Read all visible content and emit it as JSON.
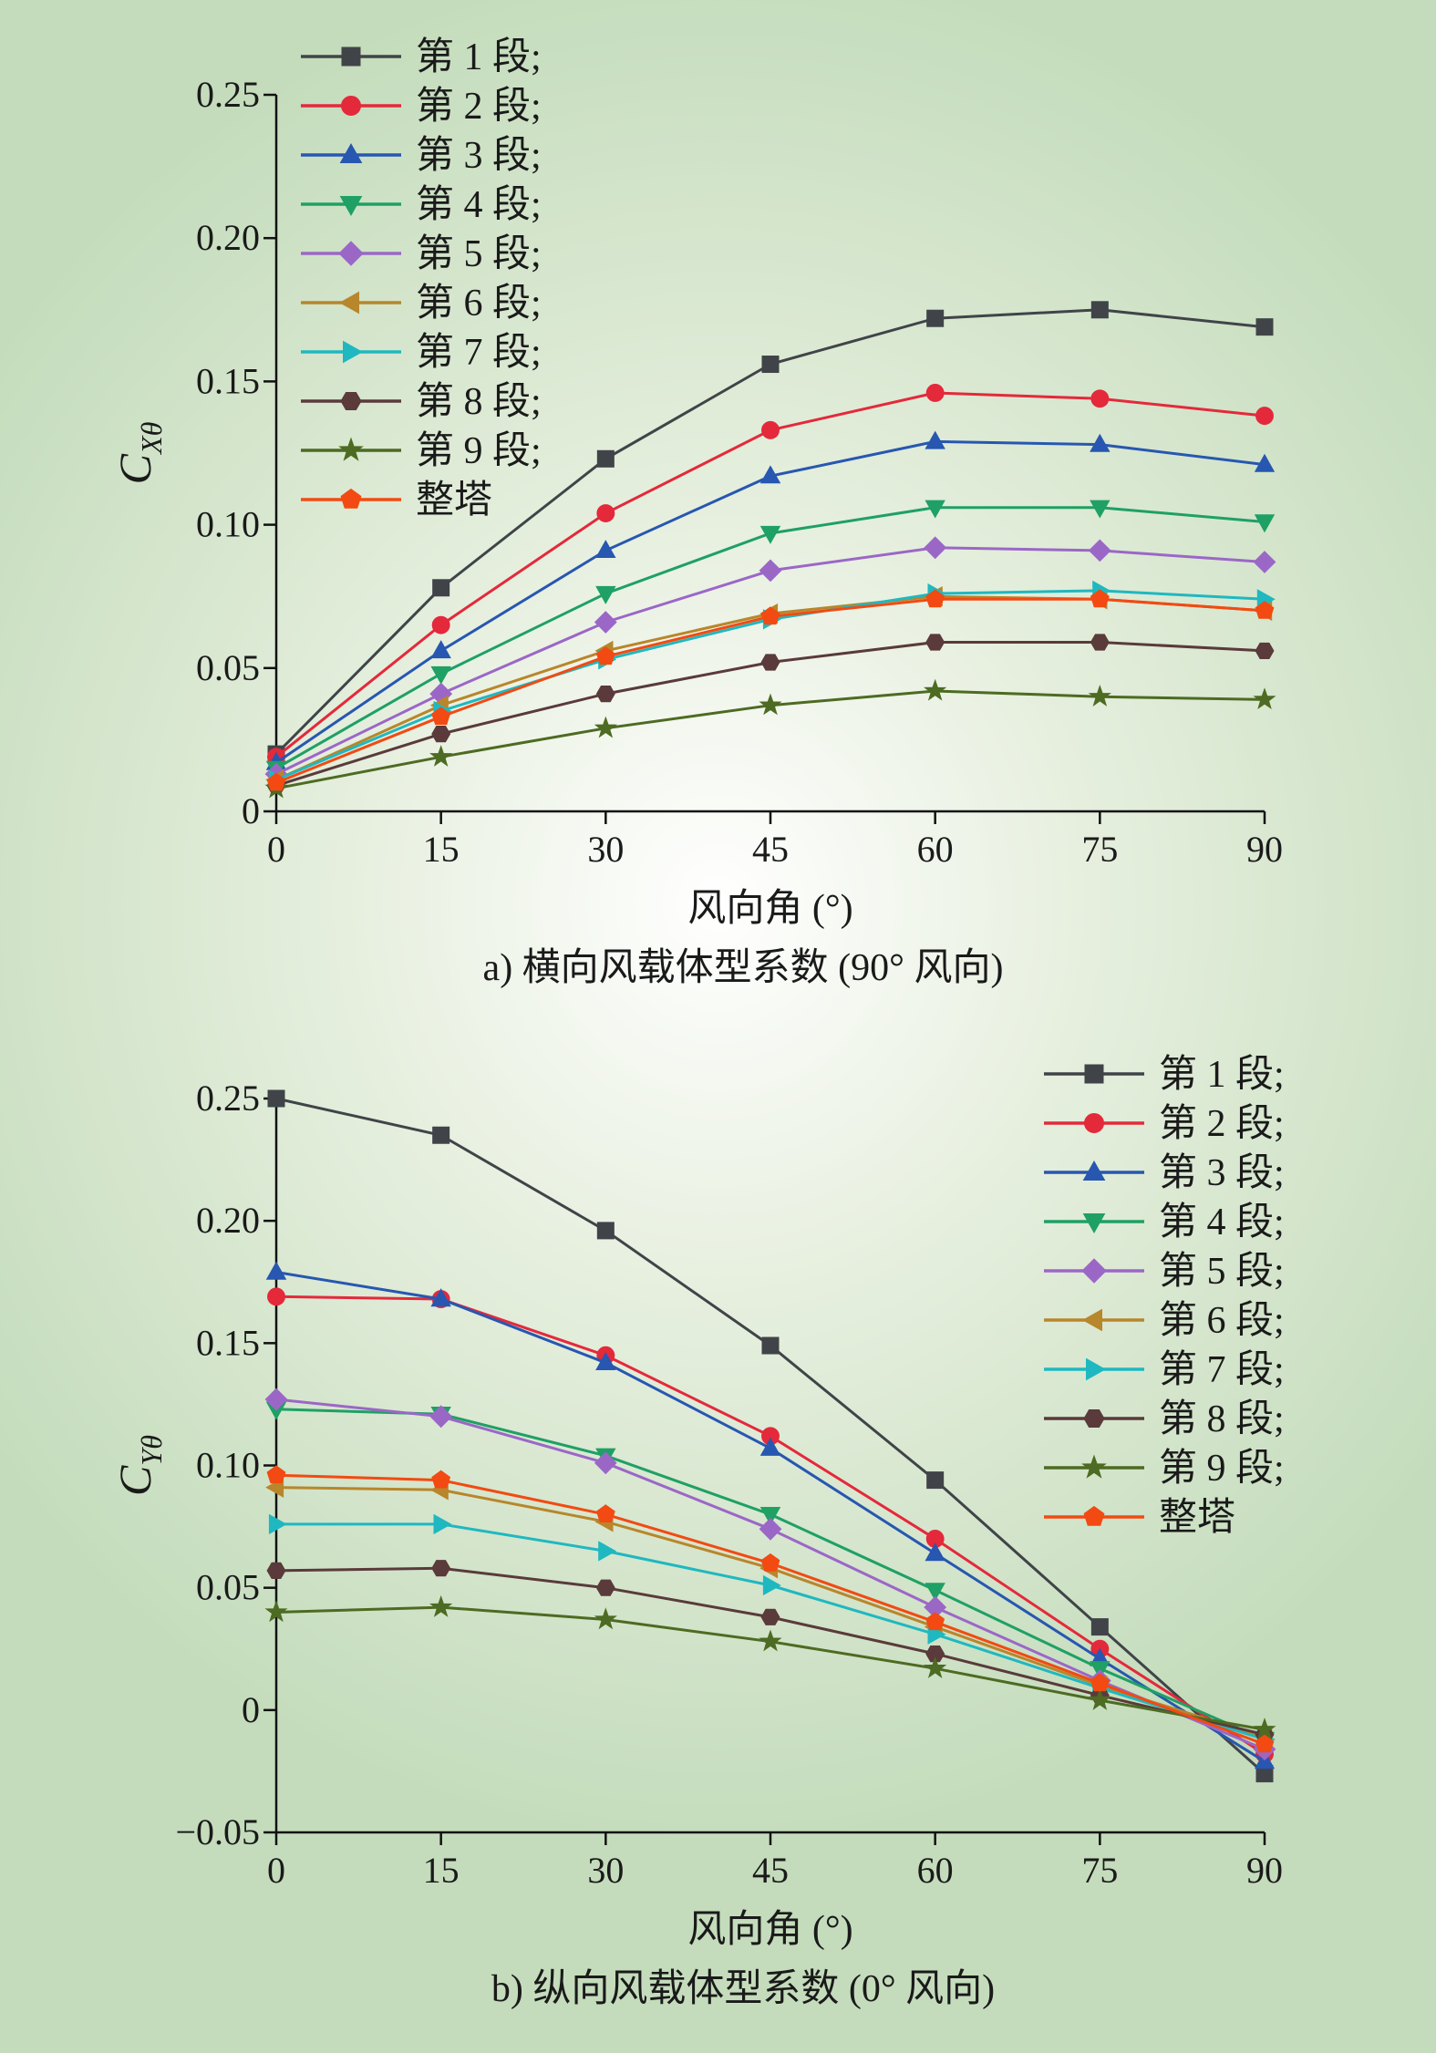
{
  "chart_data": [
    {
      "type": "line",
      "caption": "a) 横向风载体型系数 (90° 风向)",
      "xlabel": "风向角 (°)",
      "ylabel": "C",
      "ylabel_sub": "Xθ",
      "x": [
        0,
        15,
        30,
        45,
        60,
        75,
        90
      ],
      "xlim": [
        0,
        90
      ],
      "ylim": [
        0,
        0.25
      ],
      "xticks": [
        "0",
        "15",
        "30",
        "45",
        "60",
        "75",
        "90"
      ],
      "yticks": [
        {
          "value": 0,
          "label": "0"
        },
        {
          "value": 0.05,
          "label": "0.05"
        },
        {
          "value": 0.1,
          "label": "0.10"
        },
        {
          "value": 0.15,
          "label": "0.15"
        },
        {
          "value": 0.2,
          "label": "0.20"
        },
        {
          "value": 0.25,
          "label": "0.25"
        }
      ],
      "legend_position": "top-left",
      "series": [
        {
          "name": "第 1 段;",
          "color": "#404448",
          "marker": "square",
          "values": [
            0.02,
            0.078,
            0.123,
            0.156,
            0.172,
            0.175,
            0.169
          ]
        },
        {
          "name": "第 2 段;",
          "color": "#e4293b",
          "marker": "circle",
          "values": [
            0.019,
            0.065,
            0.104,
            0.133,
            0.146,
            0.144,
            0.138
          ]
        },
        {
          "name": "第 3 段;",
          "color": "#2757b0",
          "marker": "triangle-up",
          "values": [
            0.017,
            0.056,
            0.091,
            0.117,
            0.129,
            0.128,
            0.121
          ]
        },
        {
          "name": "第 4 段;",
          "color": "#1fa065",
          "marker": "triangle-down",
          "values": [
            0.015,
            0.048,
            0.076,
            0.097,
            0.106,
            0.106,
            0.101
          ]
        },
        {
          "name": "第 5 段;",
          "color": "#9b67c7",
          "marker": "diamond",
          "values": [
            0.013,
            0.041,
            0.066,
            0.084,
            0.092,
            0.091,
            0.087
          ]
        },
        {
          "name": "第 6 段;",
          "color": "#b8862b",
          "marker": "triangle-left",
          "values": [
            0.011,
            0.037,
            0.056,
            0.069,
            0.075,
            0.074,
            0.07
          ]
        },
        {
          "name": "第 7 段;",
          "color": "#1fb8c0",
          "marker": "triangle-right",
          "values": [
            0.011,
            0.035,
            0.053,
            0.067,
            0.076,
            0.077,
            0.074
          ]
        },
        {
          "name": "第 8 段;",
          "color": "#5a3a3a",
          "marker": "hexagon",
          "values": [
            0.009,
            0.027,
            0.041,
            0.052,
            0.059,
            0.059,
            0.056
          ]
        },
        {
          "name": "第 9 段;",
          "color": "#4d6b22",
          "marker": "star",
          "values": [
            0.008,
            0.019,
            0.029,
            0.037,
            0.042,
            0.04,
            0.039
          ]
        },
        {
          "name": "整塔",
          "color": "#f24a12",
          "marker": "pentagon",
          "values": [
            0.01,
            0.033,
            0.054,
            0.068,
            0.074,
            0.074,
            0.07
          ]
        }
      ]
    },
    {
      "type": "line",
      "caption": "b) 纵向风载体型系数 (0° 风向)",
      "xlabel": "风向角 (°)",
      "ylabel": "C",
      "ylabel_sub": "Yθ",
      "x": [
        0,
        15,
        30,
        45,
        60,
        75,
        90
      ],
      "xlim": [
        0,
        90
      ],
      "ylim": [
        -0.05,
        0.25
      ],
      "xticks": [
        "0",
        "15",
        "30",
        "45",
        "60",
        "75",
        "90"
      ],
      "yticks": [
        {
          "value": -0.05,
          "label": "−0.05"
        },
        {
          "value": 0,
          "label": "0"
        },
        {
          "value": 0.05,
          "label": "0.05"
        },
        {
          "value": 0.1,
          "label": "0.10"
        },
        {
          "value": 0.15,
          "label": "0.15"
        },
        {
          "value": 0.2,
          "label": "0.20"
        },
        {
          "value": 0.25,
          "label": "0.25"
        }
      ],
      "legend_position": "top-right",
      "series": [
        {
          "name": "第 1 段;",
          "color": "#404448",
          "marker": "square",
          "values": [
            0.25,
            0.235,
            0.196,
            0.149,
            0.094,
            0.034,
            -0.026
          ]
        },
        {
          "name": "第 2 段;",
          "color": "#e4293b",
          "marker": "circle",
          "values": [
            0.169,
            0.168,
            0.145,
            0.112,
            0.07,
            0.025,
            -0.018
          ]
        },
        {
          "name": "第 3 段;",
          "color": "#2757b0",
          "marker": "triangle-up",
          "values": [
            0.179,
            0.168,
            0.142,
            0.107,
            0.064,
            0.021,
            -0.021
          ]
        },
        {
          "name": "第 4 段;",
          "color": "#1fa065",
          "marker": "triangle-down",
          "values": [
            0.123,
            0.121,
            0.104,
            0.08,
            0.049,
            0.017,
            -0.012
          ]
        },
        {
          "name": "第 5 段;",
          "color": "#9b67c7",
          "marker": "diamond",
          "values": [
            0.127,
            0.12,
            0.101,
            0.074,
            0.042,
            0.012,
            -0.016
          ]
        },
        {
          "name": "第 6 段;",
          "color": "#b8862b",
          "marker": "triangle-left",
          "values": [
            0.091,
            0.09,
            0.077,
            0.058,
            0.034,
            0.01,
            -0.011
          ]
        },
        {
          "name": "第 7 段;",
          "color": "#1fb8c0",
          "marker": "triangle-right",
          "values": [
            0.076,
            0.076,
            0.065,
            0.051,
            0.031,
            0.009,
            -0.012
          ]
        },
        {
          "name": "第 8 段;",
          "color": "#5a3a3a",
          "marker": "hexagon",
          "values": [
            0.057,
            0.058,
            0.05,
            0.038,
            0.023,
            0.006,
            -0.01
          ]
        },
        {
          "name": "第 9 段;",
          "color": "#4d6b22",
          "marker": "star",
          "values": [
            0.04,
            0.042,
            0.037,
            0.028,
            0.017,
            0.004,
            -0.008
          ]
        },
        {
          "name": "整塔",
          "color": "#f24a12",
          "marker": "pentagon",
          "values": [
            0.096,
            0.094,
            0.08,
            0.06,
            0.036,
            0.011,
            -0.014
          ]
        }
      ]
    }
  ]
}
